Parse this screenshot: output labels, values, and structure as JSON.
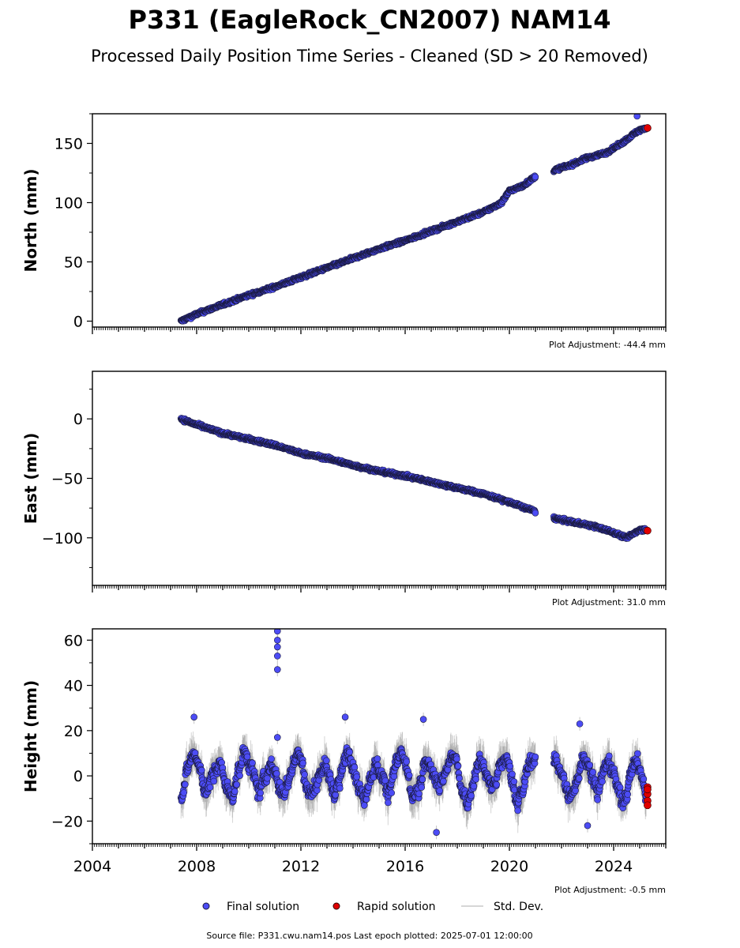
{
  "title": "P331 (EagleRock_CN2007) NAM14",
  "subtitle": "Processed Daily Position Time Series - Cleaned (SD > 20 Removed)",
  "legend": {
    "final": "Final solution",
    "rapid": "Rapid solution",
    "std": "Std. Dev."
  },
  "footer": "Source file: P331.cwu.nam14.pos  Last epoch plotted: 2025-07-01 12:00:00",
  "colors": {
    "final": "#4c4cf5",
    "final_edge": "#1a1a40",
    "rapid": "#e00000",
    "std": "#b0b0b0"
  },
  "chart_data": [
    {
      "type": "scatter",
      "name": "north",
      "ylabel": "North (mm)",
      "adjustment": "Plot Adjustment: -44.4 mm",
      "xlim": [
        2004.0,
        2026.0
      ],
      "ylim": [
        -5,
        175
      ],
      "yticks": [
        0,
        50,
        100,
        150
      ],
      "ytick_labels": [
        "0",
        "50",
        "100",
        "150"
      ],
      "xticks": [
        2004,
        2008,
        2012,
        2016,
        2020,
        2024
      ],
      "xtick_labels": [],
      "final_points": [
        [
          2007.4,
          0
        ],
        [
          2008.0,
          6
        ],
        [
          2009.0,
          14
        ],
        [
          2010.0,
          22
        ],
        [
          2011.0,
          29
        ],
        [
          2012.0,
          37
        ],
        [
          2013.0,
          45
        ],
        [
          2014.0,
          53
        ],
        [
          2015.0,
          61
        ],
        [
          2016.0,
          68
        ],
        [
          2017.0,
          76
        ],
        [
          2018.0,
          84
        ],
        [
          2019.0,
          92
        ],
        [
          2019.7,
          100
        ],
        [
          2020.0,
          110
        ],
        [
          2020.5,
          114
        ],
        [
          2021.0,
          122
        ],
        [
          2021.8,
          128
        ],
        [
          2022.5,
          133
        ],
        [
          2023.0,
          138
        ],
        [
          2023.7,
          142
        ],
        [
          2024.3,
          150
        ],
        [
          2024.9,
          160
        ],
        [
          2025.2,
          163
        ],
        [
          2024.9,
          173
        ]
      ],
      "rapid_points": [
        [
          2025.3,
          163
        ]
      ]
    },
    {
      "type": "scatter",
      "name": "east",
      "ylabel": "East (mm)",
      "adjustment": "Plot Adjustment: 31.0 mm",
      "xlim": [
        2004.0,
        2026.0
      ],
      "ylim": [
        -140,
        40
      ],
      "yticks": [
        -100,
        -50,
        0
      ],
      "ytick_labels": [
        "−100",
        "−50",
        "0"
      ],
      "xticks": [
        2004,
        2008,
        2012,
        2016,
        2020,
        2024
      ],
      "xtick_labels": [],
      "final_points": [
        [
          2007.4,
          0
        ],
        [
          2008.0,
          -5
        ],
        [
          2009.0,
          -12
        ],
        [
          2010.0,
          -17
        ],
        [
          2011.0,
          -22
        ],
        [
          2012.0,
          -29
        ],
        [
          2013.0,
          -33
        ],
        [
          2014.0,
          -39
        ],
        [
          2015.0,
          -44
        ],
        [
          2016.0,
          -48
        ],
        [
          2017.0,
          -53
        ],
        [
          2018.0,
          -58
        ],
        [
          2019.0,
          -63
        ],
        [
          2020.0,
          -70
        ],
        [
          2020.9,
          -77
        ],
        [
          2021.8,
          -84
        ],
        [
          2022.5,
          -87
        ],
        [
          2023.2,
          -90
        ],
        [
          2023.8,
          -94
        ],
        [
          2024.5,
          -100
        ],
        [
          2025.0,
          -93
        ]
      ],
      "rapid_points": [
        [
          2025.3,
          -94
        ]
      ]
    },
    {
      "type": "scatter",
      "name": "height",
      "ylabel": "Height (mm)",
      "adjustment": "Plot Adjustment: -0.5 mm",
      "xlim": [
        2004.0,
        2026.0
      ],
      "ylim": [
        -30,
        65
      ],
      "yticks": [
        -20,
        0,
        20,
        40,
        60
      ],
      "ytick_labels": [
        "−20",
        "0",
        "20",
        "40",
        "60"
      ],
      "xticks": [
        2004,
        2008,
        2012,
        2016,
        2020,
        2024
      ],
      "xtick_labels": [
        "2004",
        "2008",
        "2012",
        "2016",
        "2020",
        "2024"
      ],
      "outliers": [
        [
          2011.1,
          64
        ],
        [
          2011.1,
          60
        ],
        [
          2011.1,
          57
        ],
        [
          2011.1,
          53
        ],
        [
          2011.1,
          47
        ],
        [
          2011.1,
          17
        ],
        [
          2007.9,
          26
        ],
        [
          2013.7,
          26
        ],
        [
          2016.7,
          25
        ],
        [
          2022.7,
          23
        ],
        [
          2017.2,
          -25
        ],
        [
          2023.0,
          -22
        ]
      ],
      "rapid_points": [
        [
          2025.3,
          -5
        ],
        [
          2025.3,
          -8
        ],
        [
          2025.3,
          -11
        ],
        [
          2025.3,
          -13
        ],
        [
          2025.3,
          -6
        ]
      ],
      "gap": [
        2021.0,
        2021.7
      ]
    }
  ]
}
